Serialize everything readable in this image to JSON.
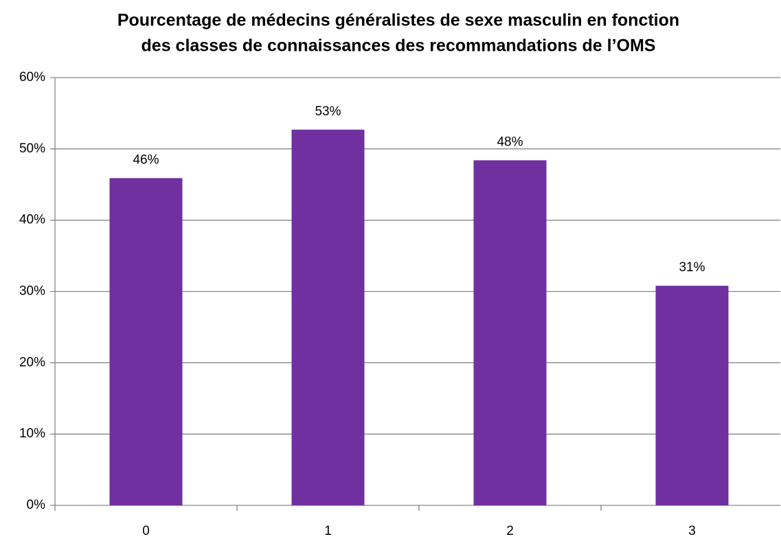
{
  "chart_data": {
    "type": "bar",
    "title": [
      "Pourcentage de médecins généralistes de sexe masculin en fonction",
      "des classes de connaissances des recommandations de l’OMS"
    ],
    "categories": [
      "0",
      "1",
      "2",
      "3"
    ],
    "values": [
      45.9,
      52.7,
      48.4,
      30.8
    ],
    "value_labels": [
      "46%",
      "53%",
      "48%",
      "31%"
    ],
    "color": "#7030a0",
    "ylim": [
      0,
      60
    ],
    "yticks": [
      {
        "value": 0,
        "label": "0%"
      },
      {
        "value": 10,
        "label": "10%"
      },
      {
        "value": 20,
        "label": "20%"
      },
      {
        "value": 30,
        "label": "30%"
      },
      {
        "value": 40,
        "label": "40%"
      },
      {
        "value": 50,
        "label": "50%"
      },
      {
        "value": 60,
        "label": "60%"
      }
    ],
    "grid": true
  }
}
